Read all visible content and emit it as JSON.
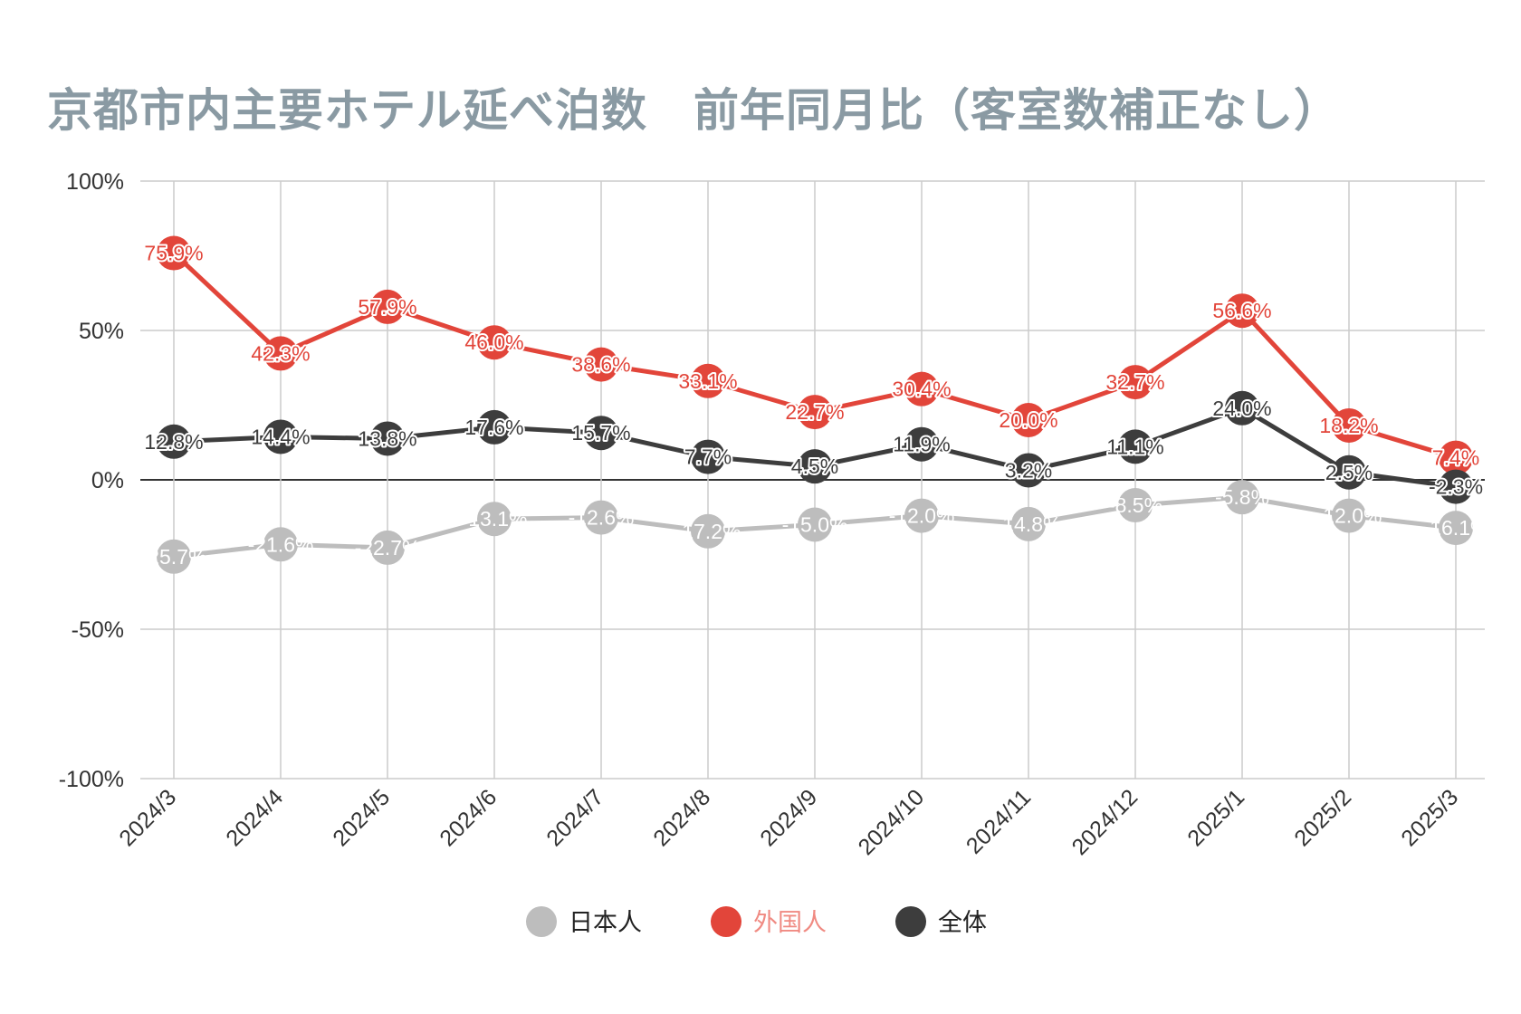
{
  "chart_data": {
    "type": "line",
    "title": "京都市内主要ホテル延べ泊数　前年同月比（客室数補正なし）",
    "categories": [
      "2024/3",
      "2024/4",
      "2024/5",
      "2024/6",
      "2024/7",
      "2024/8",
      "2024/9",
      "2024/10",
      "2024/11",
      "2024/12",
      "2025/1",
      "2025/2",
      "2025/3"
    ],
    "ylim": [
      -100,
      100
    ],
    "yticks": [
      100,
      50,
      0,
      -50,
      -100
    ],
    "ytick_labels": [
      "100%",
      "50%",
      "0%",
      "-50%",
      "-100%"
    ],
    "grid": true,
    "legend_position": "bottom",
    "series": [
      {
        "name": "日本人",
        "color": "#bdbdbd",
        "label_color": "#ffffff",
        "values": [
          -25.7,
          -21.6,
          -22.7,
          -13.1,
          -12.6,
          -17.2,
          -15.0,
          -12.0,
          -14.8,
          -8.5,
          -5.8,
          -12.0,
          -16.1
        ],
        "labels": [
          "-25.7%",
          "-21.6%",
          "-22.7%",
          "-13.1%",
          "-12.6%",
          "-17.2%",
          "-15.0%",
          "-12.0%",
          "-14.8%",
          "-8.5%",
          "-5.8%",
          "-12.0%",
          "-16.1%"
        ]
      },
      {
        "name": "外国人",
        "color": "#e2453a",
        "label_color": "#e2453a",
        "values": [
          75.9,
          42.3,
          57.9,
          46.0,
          38.6,
          33.1,
          22.7,
          30.4,
          20.0,
          32.7,
          56.6,
          18.2,
          7.4
        ],
        "labels": [
          "75.9%",
          "42.3%",
          "57.9%",
          "46.0%",
          "38.6%",
          "33.1%",
          "22.7%",
          "30.4%",
          "20.0%",
          "32.7%",
          "56.6%",
          "18.2%",
          "7.4%"
        ]
      },
      {
        "name": "全体",
        "color": "#3d3d3d",
        "label_color": "#3d3d3d",
        "values": [
          12.8,
          14.4,
          13.8,
          17.6,
          15.7,
          7.7,
          4.5,
          11.9,
          3.2,
          11.1,
          24.0,
          2.5,
          -2.3
        ],
        "labels": [
          "12.8%",
          "14.4%",
          "13.8%",
          "17.6%",
          "15.7%",
          "7.7%",
          "4.5%",
          "11.9%",
          "3.2%",
          "11.1%",
          "24.0%",
          "2.5%",
          "-2.3%"
        ]
      }
    ]
  }
}
